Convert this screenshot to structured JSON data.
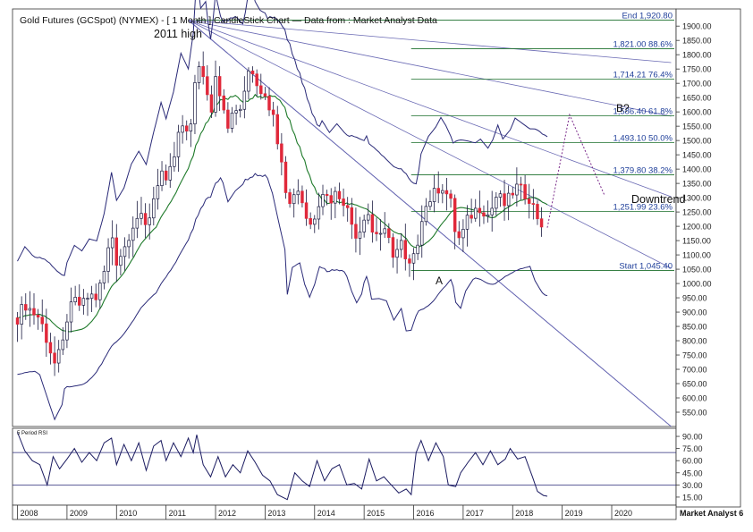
{
  "title": "Gold Futures (GCSpot) (NYMEX) -  [ 1 Month ] CandleStick Chart — Data from : Market Analyst Data",
  "footer_brand": "Market Analyst 6",
  "colors": {
    "up_candle": "#ffffff",
    "down_candle": "#e0283a",
    "candle_outline": "#1a1a40",
    "bollinger": "#2a2a78",
    "moving_average": "#1e7a2a",
    "fib_lines": "#1a6e2a",
    "fib_labels": "#1f3f9a",
    "fan_lines": "#6a6ab4",
    "projection": "#7a2a8a",
    "rsi_line": "#1a1a60",
    "axis_text": "#222222"
  },
  "chart_data": [
    {
      "type": "candlestick",
      "title": "Gold Futures (GCSpot) (NYMEX) -  [ 1 Month ] CandleStick Chart — Data from : Market Analyst Data",
      "x_axis_labels": [
        "2008",
        "2009",
        "2010",
        "2011",
        "2012",
        "2013",
        "2014",
        "2015",
        "2016",
        "2017",
        "2018",
        "2019",
        "2020"
      ],
      "x_range": [
        2007.9,
        2021.3
      ],
      "y_range": [
        500,
        1960
      ],
      "y_ticks": [
        550,
        600,
        650,
        700,
        750,
        800,
        850,
        900,
        950,
        1000,
        1050,
        1100,
        1150,
        1200,
        1250,
        1300,
        1350,
        1400,
        1450,
        1500,
        1550,
        1600,
        1650,
        1700,
        1750,
        1800,
        1850,
        1900
      ],
      "y_tick_labels": [
        "550.00",
        "600.00",
        "650.00",
        "700.00",
        "750.00",
        "800.00",
        "850.00",
        "900.00",
        "950.00",
        "1000.00",
        "1050.00",
        "1100.00",
        "1150.00",
        "1200.00",
        "1250.00",
        "1300.00",
        "1350.00",
        "1400.00",
        "1450.00",
        "1500.00",
        "1550.00",
        "1600.00",
        "1650.00",
        "1700.00",
        "1750.00",
        "1800.00",
        "1850.00",
        "1900.00"
      ],
      "close_path": [
        [
          2008.0,
          880
        ],
        [
          2008.15,
          930
        ],
        [
          2008.3,
          900
        ],
        [
          2008.45,
          880
        ],
        [
          2008.6,
          800
        ],
        [
          2008.75,
          720
        ],
        [
          2008.9,
          770
        ],
        [
          2009.0,
          880
        ],
        [
          2009.15,
          940
        ],
        [
          2009.3,
          920
        ],
        [
          2009.45,
          960
        ],
        [
          2009.6,
          950
        ],
        [
          2009.75,
          1040
        ],
        [
          2009.9,
          1180
        ],
        [
          2010.0,
          1080
        ],
        [
          2010.15,
          1120
        ],
        [
          2010.3,
          1200
        ],
        [
          2010.45,
          1240
        ],
        [
          2010.6,
          1190
        ],
        [
          2010.75,
          1300
        ],
        [
          2010.9,
          1400
        ],
        [
          2011.0,
          1340
        ],
        [
          2011.15,
          1430
        ],
        [
          2011.3,
          1560
        ],
        [
          2011.45,
          1500
        ],
        [
          2011.55,
          1620
        ],
        [
          2011.62,
          1820
        ],
        [
          2011.7,
          1700
        ],
        [
          2011.8,
          1720
        ],
        [
          2011.9,
          1570
        ],
        [
          2012.0,
          1740
        ],
        [
          2012.1,
          1660
        ],
        [
          2012.25,
          1560
        ],
        [
          2012.4,
          1600
        ],
        [
          2012.55,
          1620
        ],
        [
          2012.7,
          1780
        ],
        [
          2012.8,
          1710
        ],
        [
          2012.9,
          1680
        ],
        [
          2013.0,
          1670
        ],
        [
          2013.15,
          1590
        ],
        [
          2013.3,
          1470
        ],
        [
          2013.4,
          1390
        ],
        [
          2013.45,
          1230
        ],
        [
          2013.55,
          1320
        ],
        [
          2013.7,
          1330
        ],
        [
          2013.8,
          1250
        ],
        [
          2013.9,
          1200
        ],
        [
          2014.0,
          1240
        ],
        [
          2014.15,
          1330
        ],
        [
          2014.3,
          1290
        ],
        [
          2014.45,
          1320
        ],
        [
          2014.6,
          1290
        ],
        [
          2014.75,
          1210
        ],
        [
          2014.85,
          1170
        ],
        [
          2014.95,
          1200
        ],
        [
          2015.05,
          1280
        ],
        [
          2015.15,
          1180
        ],
        [
          2015.3,
          1180
        ],
        [
          2015.45,
          1170
        ],
        [
          2015.6,
          1100
        ],
        [
          2015.75,
          1140
        ],
        [
          2015.85,
          1060
        ],
        [
          2015.95,
          1060
        ],
        [
          2016.05,
          1110
        ],
        [
          2016.15,
          1230
        ],
        [
          2016.3,
          1290
        ],
        [
          2016.45,
          1320
        ],
        [
          2016.55,
          1350
        ],
        [
          2016.65,
          1320
        ],
        [
          2016.75,
          1280
        ],
        [
          2016.85,
          1170
        ],
        [
          2016.95,
          1150
        ],
        [
          2017.05,
          1210
        ],
        [
          2017.2,
          1250
        ],
        [
          2017.35,
          1270
        ],
        [
          2017.5,
          1240
        ],
        [
          2017.6,
          1270
        ],
        [
          2017.7,
          1320
        ],
        [
          2017.8,
          1270
        ],
        [
          2017.95,
          1300
        ],
        [
          2018.05,
          1340
        ],
        [
          2018.2,
          1320
        ],
        [
          2018.35,
          1300
        ],
        [
          2018.45,
          1250
        ],
        [
          2018.55,
          1220
        ],
        [
          2018.62,
          1200
        ],
        [
          2018.7,
          1195
        ]
      ],
      "levels": [
        {
          "label": "End 1,920.80",
          "value": 1920.8
        },
        {
          "label": "1,821.00 88.6%",
          "value": 1821.0
        },
        {
          "label": "1,714.21 76.4%",
          "value": 1714.21
        },
        {
          "label": "1,586.40 61.8%",
          "value": 1586.4
        },
        {
          "label": "1,493.10 50.0%",
          "value": 1493.1
        },
        {
          "label": "1,379.80 38.2%",
          "value": 1379.8
        },
        {
          "label": "1,251.99 23.6%",
          "value": 1251.99
        },
        {
          "label": "Start 1,045.40",
          "value": 1045.4
        }
      ],
      "annotations": [
        "2011 high",
        "A",
        "B?",
        "Downtrend"
      ],
      "projection": [
        [
          2018.7,
          1195
        ],
        [
          2019.15,
          1590
        ],
        [
          2019.85,
          1310
        ]
      ]
    },
    {
      "type": "line",
      "title": "5 Period RSI",
      "y_range": [
        5,
        100
      ],
      "y_ticks": [
        15,
        30,
        45,
        60,
        75,
        90
      ],
      "y_tick_labels": [
        "15.00",
        "30.00",
        "45.00",
        "60.00",
        "75.00",
        "90.00"
      ],
      "reference_lines": [
        70,
        30
      ],
      "values": [
        [
          2008.0,
          95
        ],
        [
          2008.15,
          72
        ],
        [
          2008.3,
          60
        ],
        [
          2008.45,
          55
        ],
        [
          2008.6,
          30
        ],
        [
          2008.72,
          65
        ],
        [
          2008.85,
          50
        ],
        [
          2009.0,
          62
        ],
        [
          2009.15,
          75
        ],
        [
          2009.3,
          58
        ],
        [
          2009.45,
          70
        ],
        [
          2009.6,
          60
        ],
        [
          2009.75,
          82
        ],
        [
          2009.9,
          88
        ],
        [
          2010.0,
          55
        ],
        [
          2010.15,
          80
        ],
        [
          2010.3,
          60
        ],
        [
          2010.45,
          82
        ],
        [
          2010.6,
          48
        ],
        [
          2010.75,
          78
        ],
        [
          2010.9,
          85
        ],
        [
          2011.0,
          60
        ],
        [
          2011.15,
          82
        ],
        [
          2011.3,
          65
        ],
        [
          2011.45,
          88
        ],
        [
          2011.55,
          70
        ],
        [
          2011.62,
          92
        ],
        [
          2011.75,
          55
        ],
        [
          2011.9,
          40
        ],
        [
          2012.05,
          65
        ],
        [
          2012.2,
          40
        ],
        [
          2012.35,
          55
        ],
        [
          2012.5,
          45
        ],
        [
          2012.65,
          72
        ],
        [
          2012.8,
          58
        ],
        [
          2012.95,
          42
        ],
        [
          2013.1,
          35
        ],
        [
          2013.25,
          18
        ],
        [
          2013.45,
          12
        ],
        [
          2013.6,
          45
        ],
        [
          2013.75,
          35
        ],
        [
          2013.9,
          28
        ],
        [
          2014.05,
          60
        ],
        [
          2014.2,
          35
        ],
        [
          2014.35,
          50
        ],
        [
          2014.5,
          55
        ],
        [
          2014.65,
          30
        ],
        [
          2014.8,
          32
        ],
        [
          2014.95,
          25
        ],
        [
          2015.1,
          62
        ],
        [
          2015.25,
          35
        ],
        [
          2015.4,
          40
        ],
        [
          2015.55,
          30
        ],
        [
          2015.7,
          20
        ],
        [
          2015.85,
          25
        ],
        [
          2015.95,
          18
        ],
        [
          2016.05,
          70
        ],
        [
          2016.15,
          85
        ],
        [
          2016.3,
          60
        ],
        [
          2016.45,
          82
        ],
        [
          2016.6,
          65
        ],
        [
          2016.7,
          30
        ],
        [
          2016.85,
          28
        ],
        [
          2016.95,
          45
        ],
        [
          2017.1,
          58
        ],
        [
          2017.25,
          70
        ],
        [
          2017.4,
          55
        ],
        [
          2017.55,
          72
        ],
        [
          2017.7,
          55
        ],
        [
          2017.85,
          62
        ],
        [
          2017.95,
          75
        ],
        [
          2018.1,
          62
        ],
        [
          2018.25,
          65
        ],
        [
          2018.4,
          40
        ],
        [
          2018.5,
          22
        ],
        [
          2018.62,
          17
        ],
        [
          2018.7,
          16
        ]
      ]
    }
  ]
}
